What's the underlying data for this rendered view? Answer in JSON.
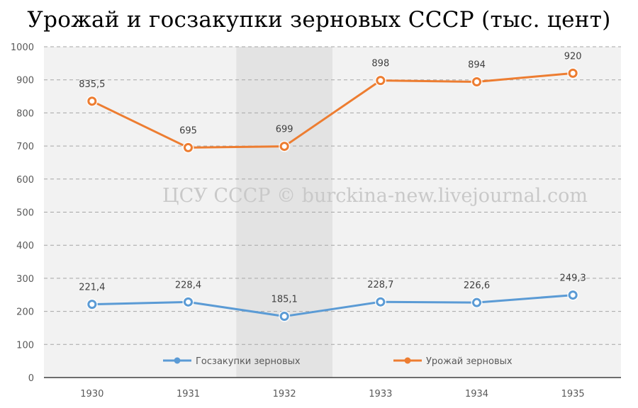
{
  "title": "Урожай и госзакупки зерновых СССР (тыс. цент)",
  "watermark": "ЦСУ СССР © burckina-new.livejournal.com",
  "colors": {
    "orange": "#ED7D31",
    "blue": "#5B9BD5",
    "highlight": "#e3e3e3",
    "plot_bg": "#f2f2f2"
  },
  "chart_data": {
    "type": "line",
    "categories": [
      "1930",
      "1931",
      "1932",
      "1933",
      "1934",
      "1935"
    ],
    "ylim": [
      0,
      1000
    ],
    "yticks": [
      "0",
      "100",
      "200",
      "300",
      "400",
      "500",
      "600",
      "700",
      "800",
      "900",
      "1000"
    ],
    "grid": true,
    "highlight_category": "1932",
    "legend_position": "bottom",
    "series": [
      {
        "name": "Госзакупки зерновых",
        "values": [
          221.4,
          228.4,
          185.1,
          228.7,
          226.6,
          249.3
        ],
        "labels": [
          "221,4",
          "228,4",
          "185,1",
          "228,7",
          "226,6",
          "249,3"
        ],
        "color": "#5B9BD5"
      },
      {
        "name": "Урожай зерновых",
        "values": [
          835.5,
          695,
          699,
          898,
          894,
          920
        ],
        "labels": [
          "835,5",
          "695",
          "699",
          "898",
          "894",
          "920"
        ],
        "color": "#ED7D31"
      }
    ]
  }
}
